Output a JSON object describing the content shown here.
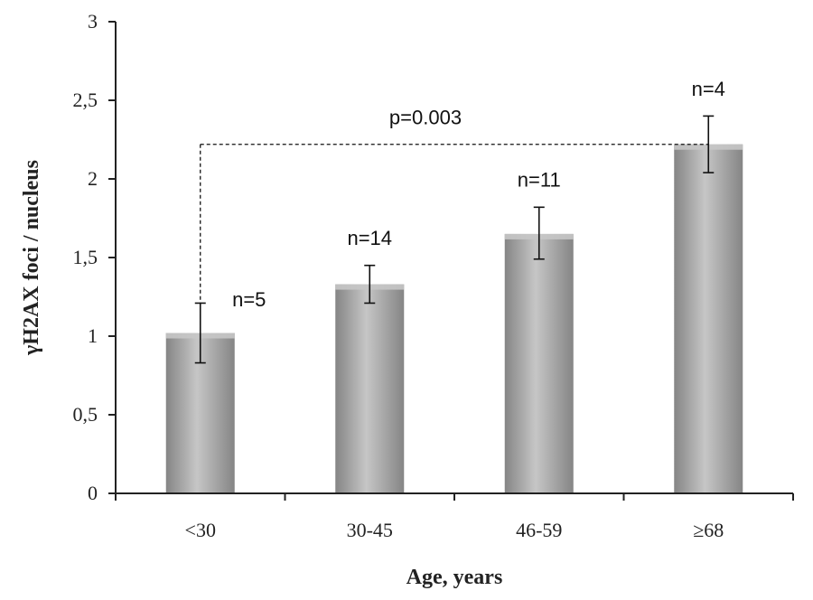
{
  "chart_data": {
    "type": "bar",
    "categories": [
      "<30",
      "30-45",
      "46-59",
      "≥68"
    ],
    "values": [
      1.02,
      1.33,
      1.65,
      2.22
    ],
    "error_low": [
      0.83,
      1.21,
      1.49,
      2.04
    ],
    "error_high": [
      1.21,
      1.45,
      1.82,
      2.4
    ],
    "annotations": [
      "n=5",
      "n=14",
      "n=11",
      "n=4"
    ],
    "significance": {
      "label": "p=0.003",
      "from_category": 0,
      "to_category": 3,
      "level": 2.22
    },
    "yticks": [
      "0",
      "0,5",
      "1",
      "1,5",
      "2",
      "2,5",
      "3"
    ],
    "ylim": [
      0,
      3
    ],
    "xlabel": "Age, years",
    "ylabel": "γH2AX foci / nucleus",
    "grid": false,
    "bar_color": "#a3a3a3",
    "bar_highlight": "#c6c6c6",
    "bar_shadow": "#858585"
  }
}
